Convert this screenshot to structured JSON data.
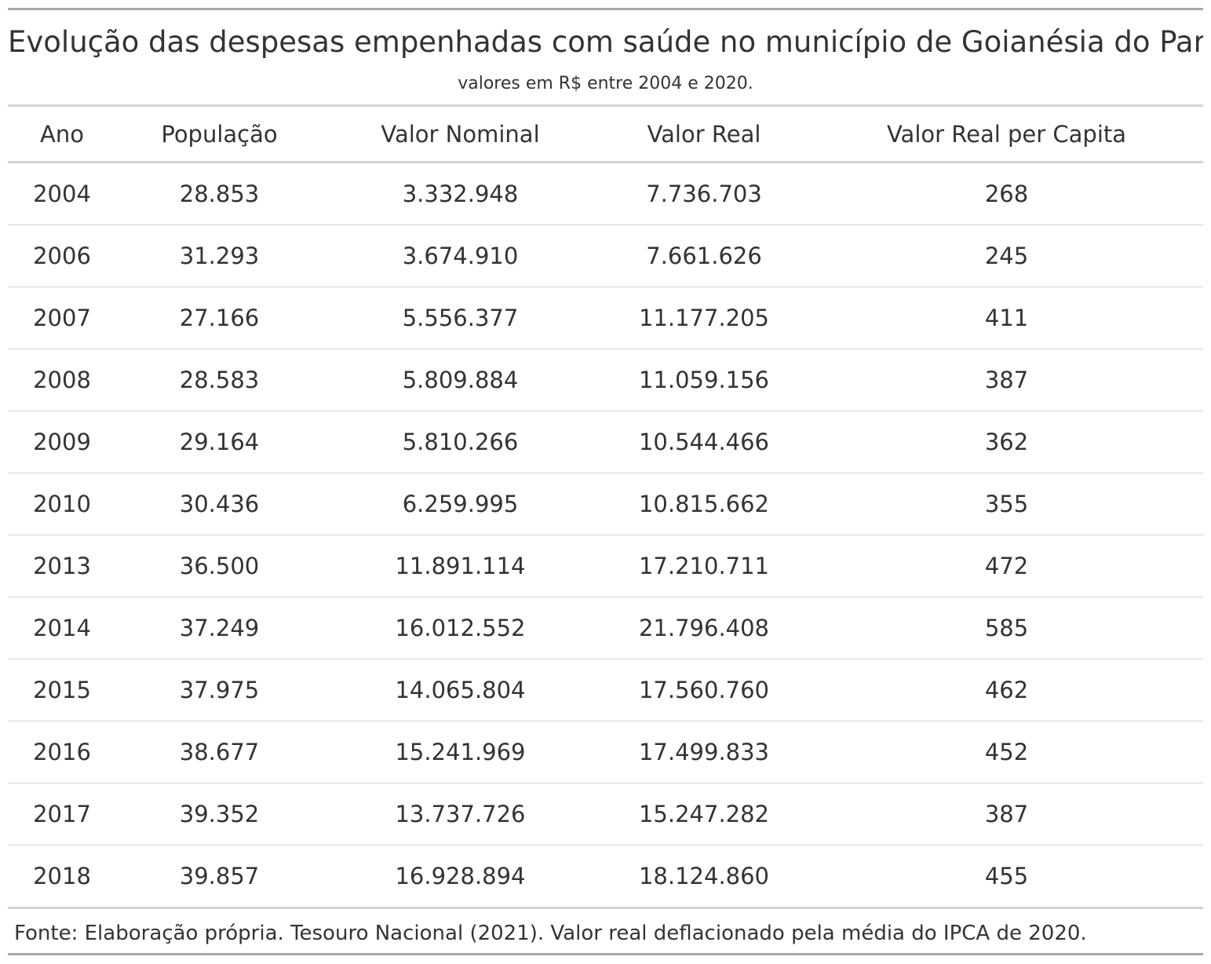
{
  "title": "Evolução das despesas empenhadas com saúde no município de Goianésia do Pará PA",
  "subtitle": "valores em R$ entre 2004 e 2020.",
  "columns": [
    "Ano",
    "População",
    "Valor Nominal",
    "Valor Real",
    "Valor Real per Capita"
  ],
  "rows": [
    [
      "2004",
      "28.853",
      "3.332.948",
      "7.736.703",
      "268"
    ],
    [
      "2006",
      "31.293",
      "3.674.910",
      "7.661.626",
      "245"
    ],
    [
      "2007",
      "27.166",
      "5.556.377",
      "11.177.205",
      "411"
    ],
    [
      "2008",
      "28.583",
      "5.809.884",
      "11.059.156",
      "387"
    ],
    [
      "2009",
      "29.164",
      "5.810.266",
      "10.544.466",
      "362"
    ],
    [
      "2010",
      "30.436",
      "6.259.995",
      "10.815.662",
      "355"
    ],
    [
      "2013",
      "36.500",
      "11.891.114",
      "17.210.711",
      "472"
    ],
    [
      "2014",
      "37.249",
      "16.012.552",
      "21.796.408",
      "585"
    ],
    [
      "2015",
      "37.975",
      "14.065.804",
      "17.560.760",
      "462"
    ],
    [
      "2016",
      "38.677",
      "15.241.969",
      "17.499.833",
      "452"
    ],
    [
      "2017",
      "39.352",
      "13.737.726",
      "15.247.282",
      "387"
    ],
    [
      "2018",
      "39.857",
      "16.928.894",
      "18.124.860",
      "455"
    ]
  ],
  "source_note": "Fonte: Elaboração própria. Tesouro Nacional (2021). Valor real deflacionado pela média do IPCA de 2020."
}
